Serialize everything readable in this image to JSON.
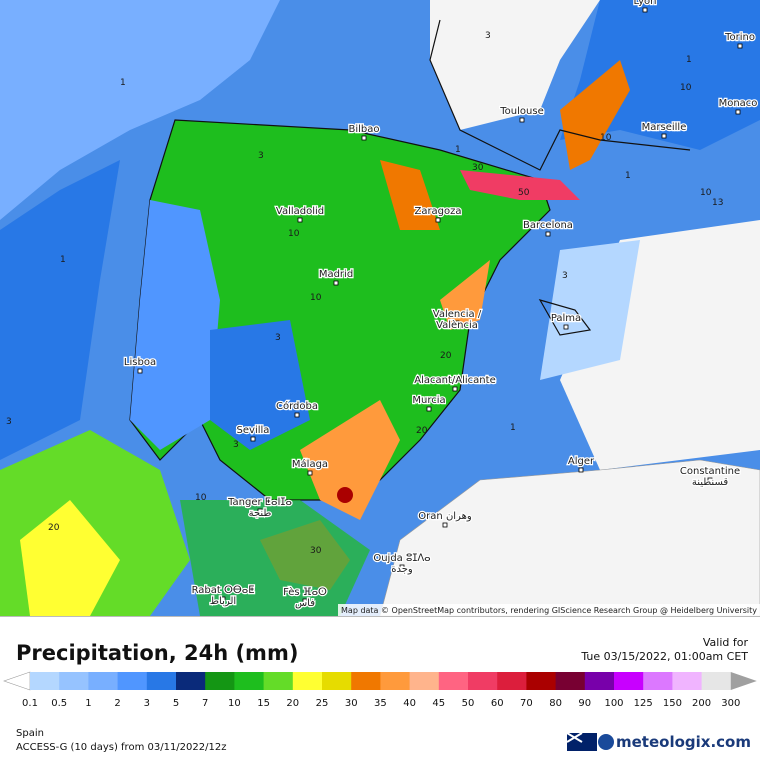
{
  "map": {
    "cities": [
      {
        "lines": [
          "Lyon"
        ]
      },
      {
        "lines": [
          "Torino"
        ]
      },
      {
        "lines": [
          "Monaco"
        ]
      },
      {
        "lines": [
          "Toulouse"
        ]
      },
      {
        "lines": [
          "Marseille"
        ]
      },
      {
        "lines": [
          "Bilbao"
        ]
      },
      {
        "lines": [
          "Valladolid"
        ]
      },
      {
        "lines": [
          "Zaragoza"
        ]
      },
      {
        "lines": [
          "Barcelona"
        ]
      },
      {
        "lines": [
          "Madrid"
        ]
      },
      {
        "lines": [
          "Valencia /",
          "València"
        ]
      },
      {
        "lines": [
          "Palma"
        ]
      },
      {
        "lines": [
          "Lisboa"
        ]
      },
      {
        "lines": [
          "Alacant/Alicante"
        ]
      },
      {
        "lines": [
          "Murcia"
        ]
      },
      {
        "lines": [
          "Córdoba"
        ]
      },
      {
        "lines": [
          "Sevilla"
        ]
      },
      {
        "lines": [
          "Alger"
        ]
      },
      {
        "lines": [
          "Constantine",
          "قسنطينة"
        ]
      },
      {
        "lines": [
          "Málaga"
        ]
      },
      {
        "lines": [
          "Tanger ⵟⴰⵏⵊⴰ",
          "طنجة"
        ]
      },
      {
        "lines": [
          "Oran وهران"
        ]
      },
      {
        "lines": [
          "Oujda ⵓⵊⴷⴰ",
          "وجدة"
        ]
      },
      {
        "lines": [
          "Rabat ⵔⴱⴰⵟ",
          "الرباط"
        ]
      },
      {
        "lines": [
          "Fès ⴼⴰⵙ",
          "فاس"
        ]
      }
    ],
    "contour_labels": [
      "3",
      "1",
      "3",
      "10",
      "1",
      "3",
      "10",
      "30",
      "50",
      "10",
      "1",
      "10",
      "13",
      "10",
      "3",
      "1",
      "3",
      "20",
      "20",
      "1",
      "10",
      "20",
      "30",
      "3",
      "1"
    ],
    "attribution": "Map data © OpenStreetMap contributors, rendering GIScience Research Group @ Heidelberg University"
  },
  "legend": {
    "title": "Precipitation, 24h (mm)",
    "valid_label": "Valid for",
    "valid_time": "Tue 03/15/2022, 01:00am CET",
    "ticks": [
      0.1,
      0.5,
      1,
      2,
      3,
      5,
      7,
      10,
      15,
      20,
      25,
      30,
      35,
      40,
      45,
      50,
      60,
      70,
      80,
      90,
      100,
      125,
      150,
      200,
      300
    ],
    "colors": [
      "#b4d7ff",
      "#96c3ff",
      "#78afff",
      "#5096ff",
      "#2878e6",
      "#0a2a7a",
      "#149614",
      "#1ebe1e",
      "#64dc28",
      "#ffff32",
      "#e6dc00",
      "#f07800",
      "#ff9a3c",
      "#ffb48c",
      "#ff6482",
      "#f03c64",
      "#dc1e3c",
      "#aa0000",
      "#780032",
      "#7800aa",
      "#c800ff",
      "#dc78ff",
      "#f0b4ff",
      "#e6e6e6"
    ]
  },
  "footer": {
    "region": "Spain",
    "model": "ACCESS-G (10 days) from 03/11/2022/12z",
    "brand": "meteologix.com"
  }
}
